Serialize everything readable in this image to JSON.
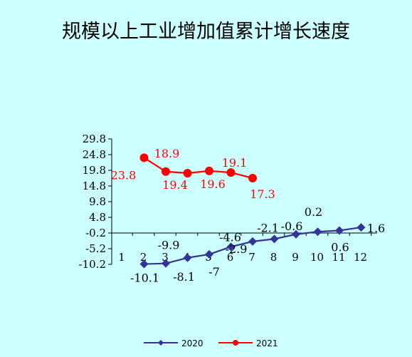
{
  "chart_data": {
    "type": "line",
    "title": "规模以上工业增加值累计增长速度",
    "categories": [
      "1",
      "2",
      "3",
      "4",
      "5",
      "6",
      "7",
      "8",
      "9",
      "10",
      "11",
      "12"
    ],
    "y_ticks": [
      "29.8",
      "24.8",
      "19.8",
      "14.8",
      "9.8",
      "4.8",
      "-0.2",
      "-5.2",
      "-10.2"
    ],
    "ylim": [
      -10.2,
      29.8
    ],
    "grid": false,
    "legend_position": "bottom",
    "colors": {
      "series_2020": "#333399",
      "series_2021": "#FF0000",
      "background": "#CCFFFF"
    },
    "series": [
      {
        "name": "2020",
        "values": [
          null,
          -10.1,
          -9.9,
          -8.1,
          -7,
          -4.6,
          -2.9,
          -2.1,
          -0.6,
          0.2,
          0.6,
          1.6
        ],
        "labels": [
          "",
          "-10.1",
          "-9.9",
          "-8.1",
          "-7",
          "-4.6",
          "-2.9",
          "-2.1",
          "-0.6",
          "0.2",
          "0.6",
          "1.6"
        ]
      },
      {
        "name": "2021",
        "values": [
          null,
          23.8,
          19.4,
          18.9,
          19.6,
          19.1,
          17.3,
          null,
          null,
          null,
          null,
          null
        ],
        "labels": [
          "",
          "23.8",
          "19.4",
          "18.9",
          "19.6",
          "19.1",
          "17.3",
          "",
          "",
          "",
          "",
          ""
        ]
      }
    ]
  }
}
